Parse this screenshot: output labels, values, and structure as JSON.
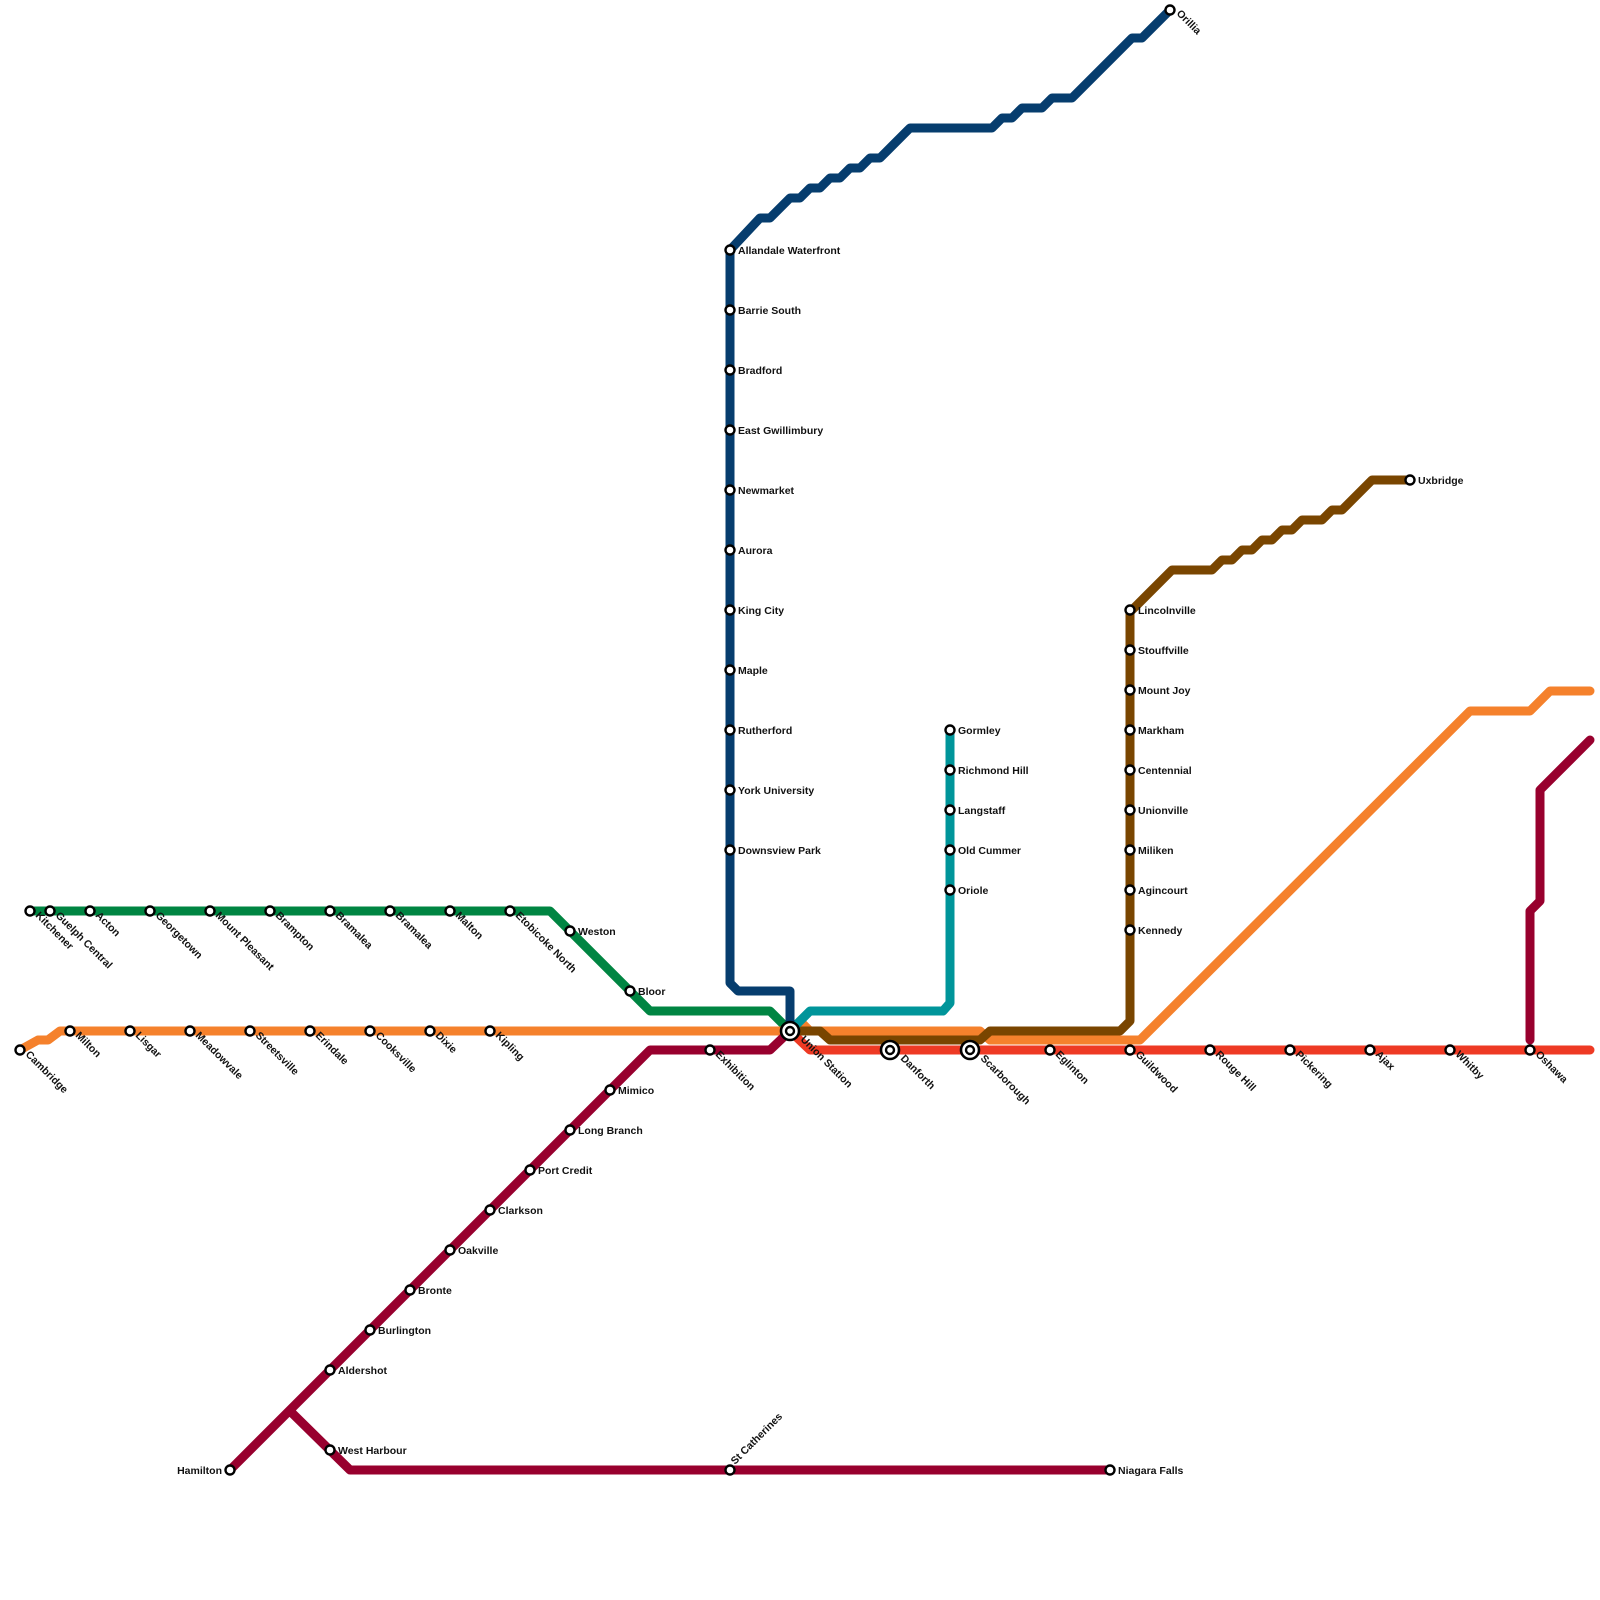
{
  "lines": [
    {
      "id": "barrie",
      "name": "",
      "color": "#063d6e"
    },
    {
      "id": "kitchener",
      "name": "",
      "color": "#008542"
    },
    {
      "id": "milton",
      "name": "",
      "color": "#f5812c"
    },
    {
      "id": "richmond-hill",
      "name": "",
      "color": "#00959a"
    },
    {
      "id": "stouffville",
      "name": "",
      "color": "#794500"
    },
    {
      "id": "lakeshore-east",
      "name": "",
      "color": "#ee3a24"
    },
    {
      "id": "lakeshore-west",
      "name": "",
      "color": "#98002e"
    },
    {
      "id": "east-orange",
      "name": "",
      "color": "#f5812c"
    }
  ],
  "stations": {
    "orillia": "Orillia",
    "allandale_waterfront": "Allandale Waterfront",
    "barrie_south": "Barrie South",
    "bradford": "Bradford",
    "east_gwillimbury": "East Gwillimbury",
    "newmarket": "Newmarket",
    "aurora": "Aurora",
    "king_city": "King City",
    "maple": "Maple",
    "rutherford": "Rutherford",
    "york_university": "York University",
    "downsview_park": "Downsview Park",
    "kitchener": "Kitchener",
    "guelph_central": "Guelph Central",
    "acton": "Acton",
    "georgetown": "Georgetown",
    "mount_pleasant": "Mount Pleasant",
    "brampton": "Brampton",
    "bramalea_1": "Bramalea",
    "bramalea_2": "Bramalea",
    "malton": "Malton",
    "etobicoke_north": "Etobicoke North",
    "weston": "Weston",
    "bloor": "Bloor",
    "cambridge": "Cambridge",
    "milton": "Milton",
    "lisgar": "Lisgar",
    "meadowvale": "Meadowvale",
    "streetsville": "Streetsville",
    "erindale": "Erindale",
    "cooksville": "Cooksville",
    "dixie": "Dixie",
    "kipling": "Kipling",
    "union_station": "Union Station",
    "exhibition": "Exhibition",
    "mimico": "Mimico",
    "long_branch": "Long Branch",
    "port_credit": "Port Credit",
    "clarkson": "Clarkson",
    "oakville": "Oakville",
    "bronte": "Bronte",
    "burlington": "Burlington",
    "aldershot": "Aldershot",
    "west_harbour": "West Harbour",
    "hamilton": "Hamilton",
    "st_catherines": "St Catherines",
    "niagara_falls": "Niagara Falls",
    "gormley": "Gormley",
    "richmond_hill": "Richmond Hill",
    "langstaff": "Langstaff",
    "old_cummer": "Old Cummer",
    "oriole": "Oriole",
    "uxbridge": "Uxbridge",
    "lincolnville": "Lincolnville",
    "stouffville": "Stouffville",
    "mount_joy": "Mount Joy",
    "markham": "Markham",
    "centennial": "Centennial",
    "unionville": "Unionville",
    "milliken": "Miliken",
    "agincourt": "Agincourt",
    "kennedy": "Kennedy",
    "danforth": "Danforth",
    "scarborough": "Scarborough",
    "eglinton": "Eglinton",
    "guildwood": "Guildwood",
    "rouge_hill": "Rouge Hill",
    "pickering": "Pickering",
    "ajax": "Ajax",
    "whitby": "Whitby",
    "oshawa": "Oshawa"
  }
}
